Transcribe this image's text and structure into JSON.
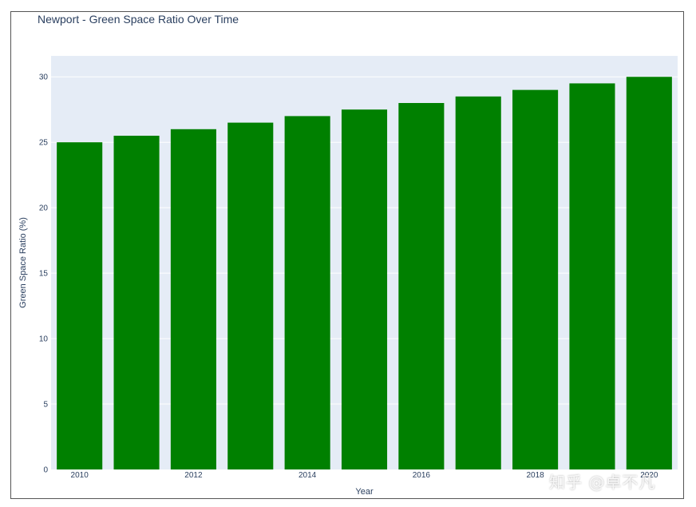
{
  "chart_data": {
    "type": "bar",
    "title": "Newport - Green Space Ratio Over Time",
    "xlabel": "Year",
    "ylabel": "Green Space Ratio (%)",
    "categories": [
      2010,
      2011,
      2012,
      2013,
      2014,
      2015,
      2016,
      2017,
      2018,
      2019,
      2020
    ],
    "values": [
      25,
      25.5,
      26,
      26.5,
      27,
      27.5,
      28,
      28.5,
      29,
      29.5,
      30
    ],
    "x_ticks": [
      "2010",
      "2012",
      "2014",
      "2016",
      "2018",
      "2020"
    ],
    "y_ticks": [
      0,
      5,
      10,
      15,
      20,
      25,
      30
    ],
    "ylim": [
      0,
      31.6
    ],
    "grid": true,
    "legend": "none",
    "bar_color": "#008000",
    "plot_bg": "#e5ecf6"
  },
  "watermark": "知乎 @卓不凡"
}
